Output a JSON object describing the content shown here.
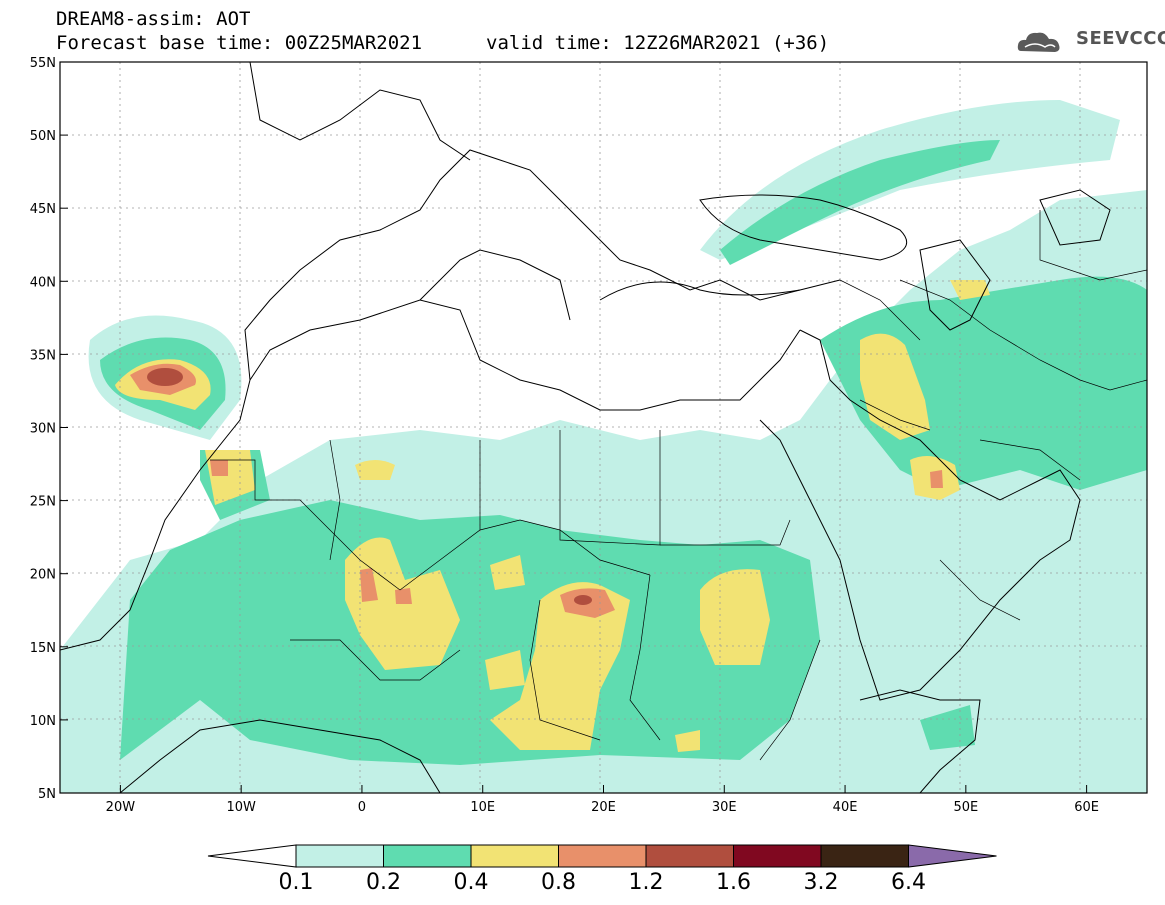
{
  "title": {
    "line1": "DREAM8-assim: AOT",
    "line2": "Forecast base time: 00Z25MAR2021",
    "valid": "valid time: 12Z26MAR2021 (+36)"
  },
  "logo": {
    "text": "SEEVCCC",
    "icon": "cloud-logo-icon"
  },
  "map": {
    "lon_range": [
      -25,
      65
    ],
    "lat_range": [
      5,
      55
    ],
    "lon_ticks": [
      {
        "v": -20,
        "label": "20W"
      },
      {
        "v": -10,
        "label": "10W"
      },
      {
        "v": 0,
        "label": "0"
      },
      {
        "v": 10,
        "label": "10E"
      },
      {
        "v": 20,
        "label": "20E"
      },
      {
        "v": 30,
        "label": "30E"
      },
      {
        "v": 40,
        "label": "40E"
      },
      {
        "v": 50,
        "label": "50E"
      },
      {
        "v": 60,
        "label": "60E"
      }
    ],
    "lat_ticks": [
      {
        "v": 55,
        "label": "55N"
      },
      {
        "v": 50,
        "label": "50N"
      },
      {
        "v": 45,
        "label": "45N"
      },
      {
        "v": 40,
        "label": "40N"
      },
      {
        "v": 35,
        "label": "35N"
      },
      {
        "v": 30,
        "label": "30N"
      },
      {
        "v": 25,
        "label": "25N"
      },
      {
        "v": 20,
        "label": "20N"
      },
      {
        "v": 15,
        "label": "15N"
      },
      {
        "v": 10,
        "label": "10N"
      },
      {
        "v": 5,
        "label": "5N"
      }
    ],
    "grid": true
  },
  "colorbar": {
    "colors": [
      "#c2f0e6",
      "#5fdcb0",
      "#f2e374",
      "#e8906a",
      "#b04e3e",
      "#800820",
      "#3a2414",
      "#8a6aaa"
    ],
    "labels": [
      "0.1",
      "0.2",
      "0.4",
      "0.8",
      "1.2",
      "1.6",
      "3.2",
      "6.4"
    ]
  }
}
